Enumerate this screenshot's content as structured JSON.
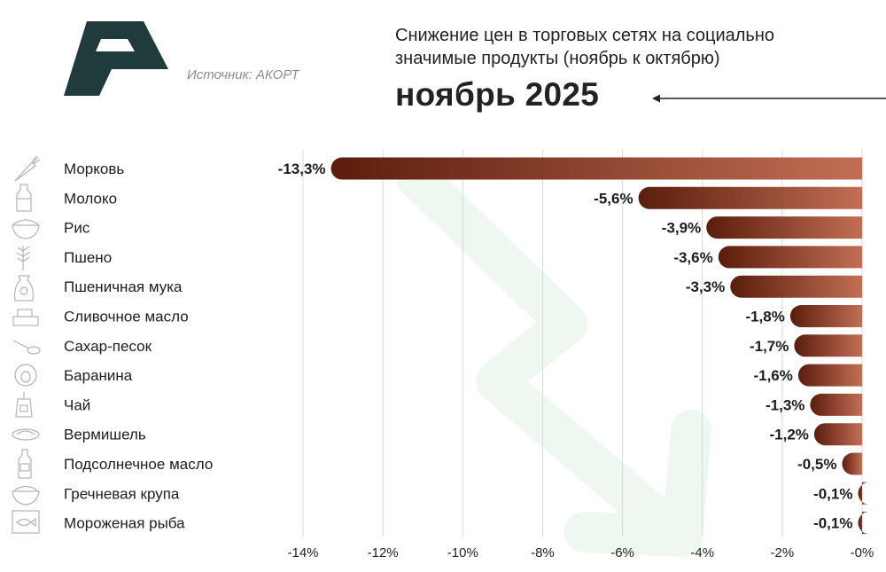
{
  "header": {
    "subtitle": "Снижение цен в торговых сетях на социально значимые продукты (ноябрь к октябрю)",
    "title": "ноябрь 2025",
    "source": "Источник: АКОРТ"
  },
  "colors": {
    "logo": "#1f3b3b",
    "bar_dark": "#5b1d0c",
    "bar_light": "#c26e55",
    "watermark_arrow": "#eef8f0",
    "grid": "#d8d8d8"
  },
  "icons": [
    "carrot-icon",
    "milk-bottle-icon",
    "rice-bowl-icon",
    "millet-icon",
    "flour-sack-icon",
    "butter-icon",
    "sugar-spoon-icon",
    "lamb-icon",
    "tea-bag-icon",
    "vermicelli-icon",
    "oil-bottle-icon",
    "buckwheat-bowl-icon",
    "frozen-fish-icon"
  ],
  "chart_data": {
    "type": "bar",
    "orientation": "horizontal",
    "title": "ноябрь 2025",
    "subtitle": "Снижение цен в торговых сетях на социально значимые продукты (ноябрь к октябрю)",
    "categories": [
      "Морковь",
      "Молоко",
      "Рис",
      "Пшено",
      "Пшеничная мука",
      "Сливочное масло",
      "Сахар-песок",
      "Баранина",
      "Чай",
      "Вермишель",
      "Подсолнечное масло",
      "Гречневая крупа",
      "Мороженая рыба"
    ],
    "values": [
      -13.3,
      -5.6,
      -3.9,
      -3.6,
      -3.3,
      -1.8,
      -1.7,
      -1.6,
      -1.3,
      -1.2,
      -0.5,
      -0.1,
      -0.1
    ],
    "value_labels": [
      "-13,3%",
      "-5,6%",
      "-3,9%",
      "-3,6%",
      "-3,3%",
      "-1,8%",
      "-1,7%",
      "-1,6%",
      "-1,3%",
      "-1,2%",
      "-0,5%",
      "-0,1%",
      "-0,1%"
    ],
    "xlim": [
      -14,
      0
    ],
    "xticks": [
      -14,
      -12,
      -10,
      -8,
      -6,
      -4,
      -2,
      0
    ],
    "xtick_labels": [
      "-14%",
      "-12%",
      "-10%",
      "-8%",
      "-6%",
      "-4%",
      "-2%",
      "-0%"
    ],
    "grid": true,
    "xlabel": "",
    "ylabel": ""
  }
}
